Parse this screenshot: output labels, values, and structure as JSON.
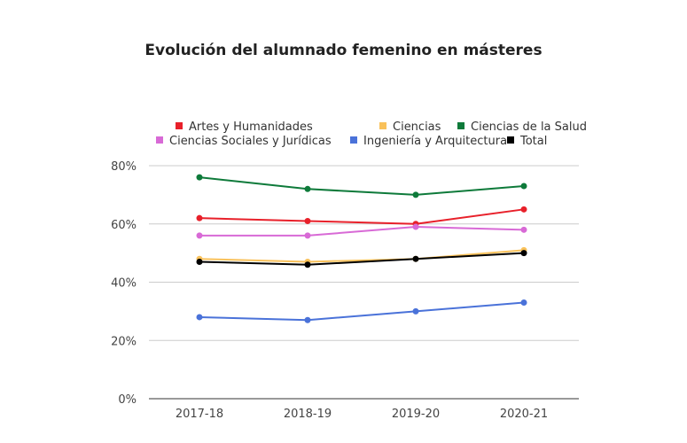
{
  "chart_data": {
    "type": "line",
    "title": "Evolución del alumnado femenino en másteres",
    "xlabel": "",
    "ylabel": "",
    "categories": [
      "2017-18",
      "2018-19",
      "2019-20",
      "2020-21"
    ],
    "ylim": [
      0,
      80
    ],
    "yticks": [
      0,
      20,
      40,
      60,
      80
    ],
    "ytick_labels": [
      "0%",
      "20%",
      "40%",
      "60%",
      "80%"
    ],
    "grid": true,
    "legend_position": "top",
    "series": [
      {
        "name": "Artes y Humanidades",
        "color": "#e8202a",
        "values": [
          62,
          61,
          60,
          65
        ]
      },
      {
        "name": "Ciencias",
        "color": "#f9c15a",
        "values": [
          48,
          47,
          48,
          51
        ]
      },
      {
        "name": "Ciencias de la Salud",
        "color": "#0e7a3a",
        "values": [
          76,
          72,
          70,
          73
        ]
      },
      {
        "name": "Ciencias Sociales y Jurídicas",
        "color": "#d86ad6",
        "values": [
          56,
          56,
          59,
          58
        ]
      },
      {
        "name": "Ingeniería y Arquitectura",
        "color": "#4a72d9",
        "values": [
          28,
          27,
          30,
          33
        ]
      },
      {
        "name": "Total",
        "color": "#000000",
        "values": [
          47,
          46,
          48,
          50
        ]
      }
    ]
  }
}
